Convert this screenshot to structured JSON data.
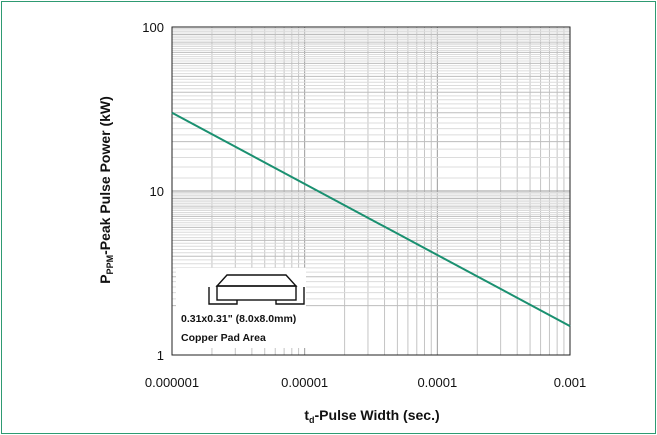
{
  "chart_data": {
    "type": "line",
    "x_scale": "log",
    "y_scale": "log",
    "xlim": [
      1e-06,
      0.001
    ],
    "ylim": [
      1,
      100
    ],
    "x_ticks": [
      "0.000001",
      "0.00001",
      "0.0001",
      "0.001"
    ],
    "y_ticks": [
      "1",
      "10",
      "100"
    ],
    "grid": true,
    "xlabel": {
      "main": "t",
      "sub": "d",
      "rest": "-Pulse Width (sec.)"
    },
    "ylabel": {
      "main": "P",
      "sub": "PPM",
      "rest": "-Peak Pulse Power (kW)"
    },
    "series": [
      {
        "color": "#1a9070",
        "points": [
          {
            "x": 1e-06,
            "y": 30
          },
          {
            "x": 0.001,
            "y": 1.5
          }
        ]
      }
    ],
    "inset": {
      "icon": "smd-package-icon",
      "line1": "0.31x0.31\" (8.0x8.0mm)",
      "line2": "Copper Pad Area"
    }
  }
}
